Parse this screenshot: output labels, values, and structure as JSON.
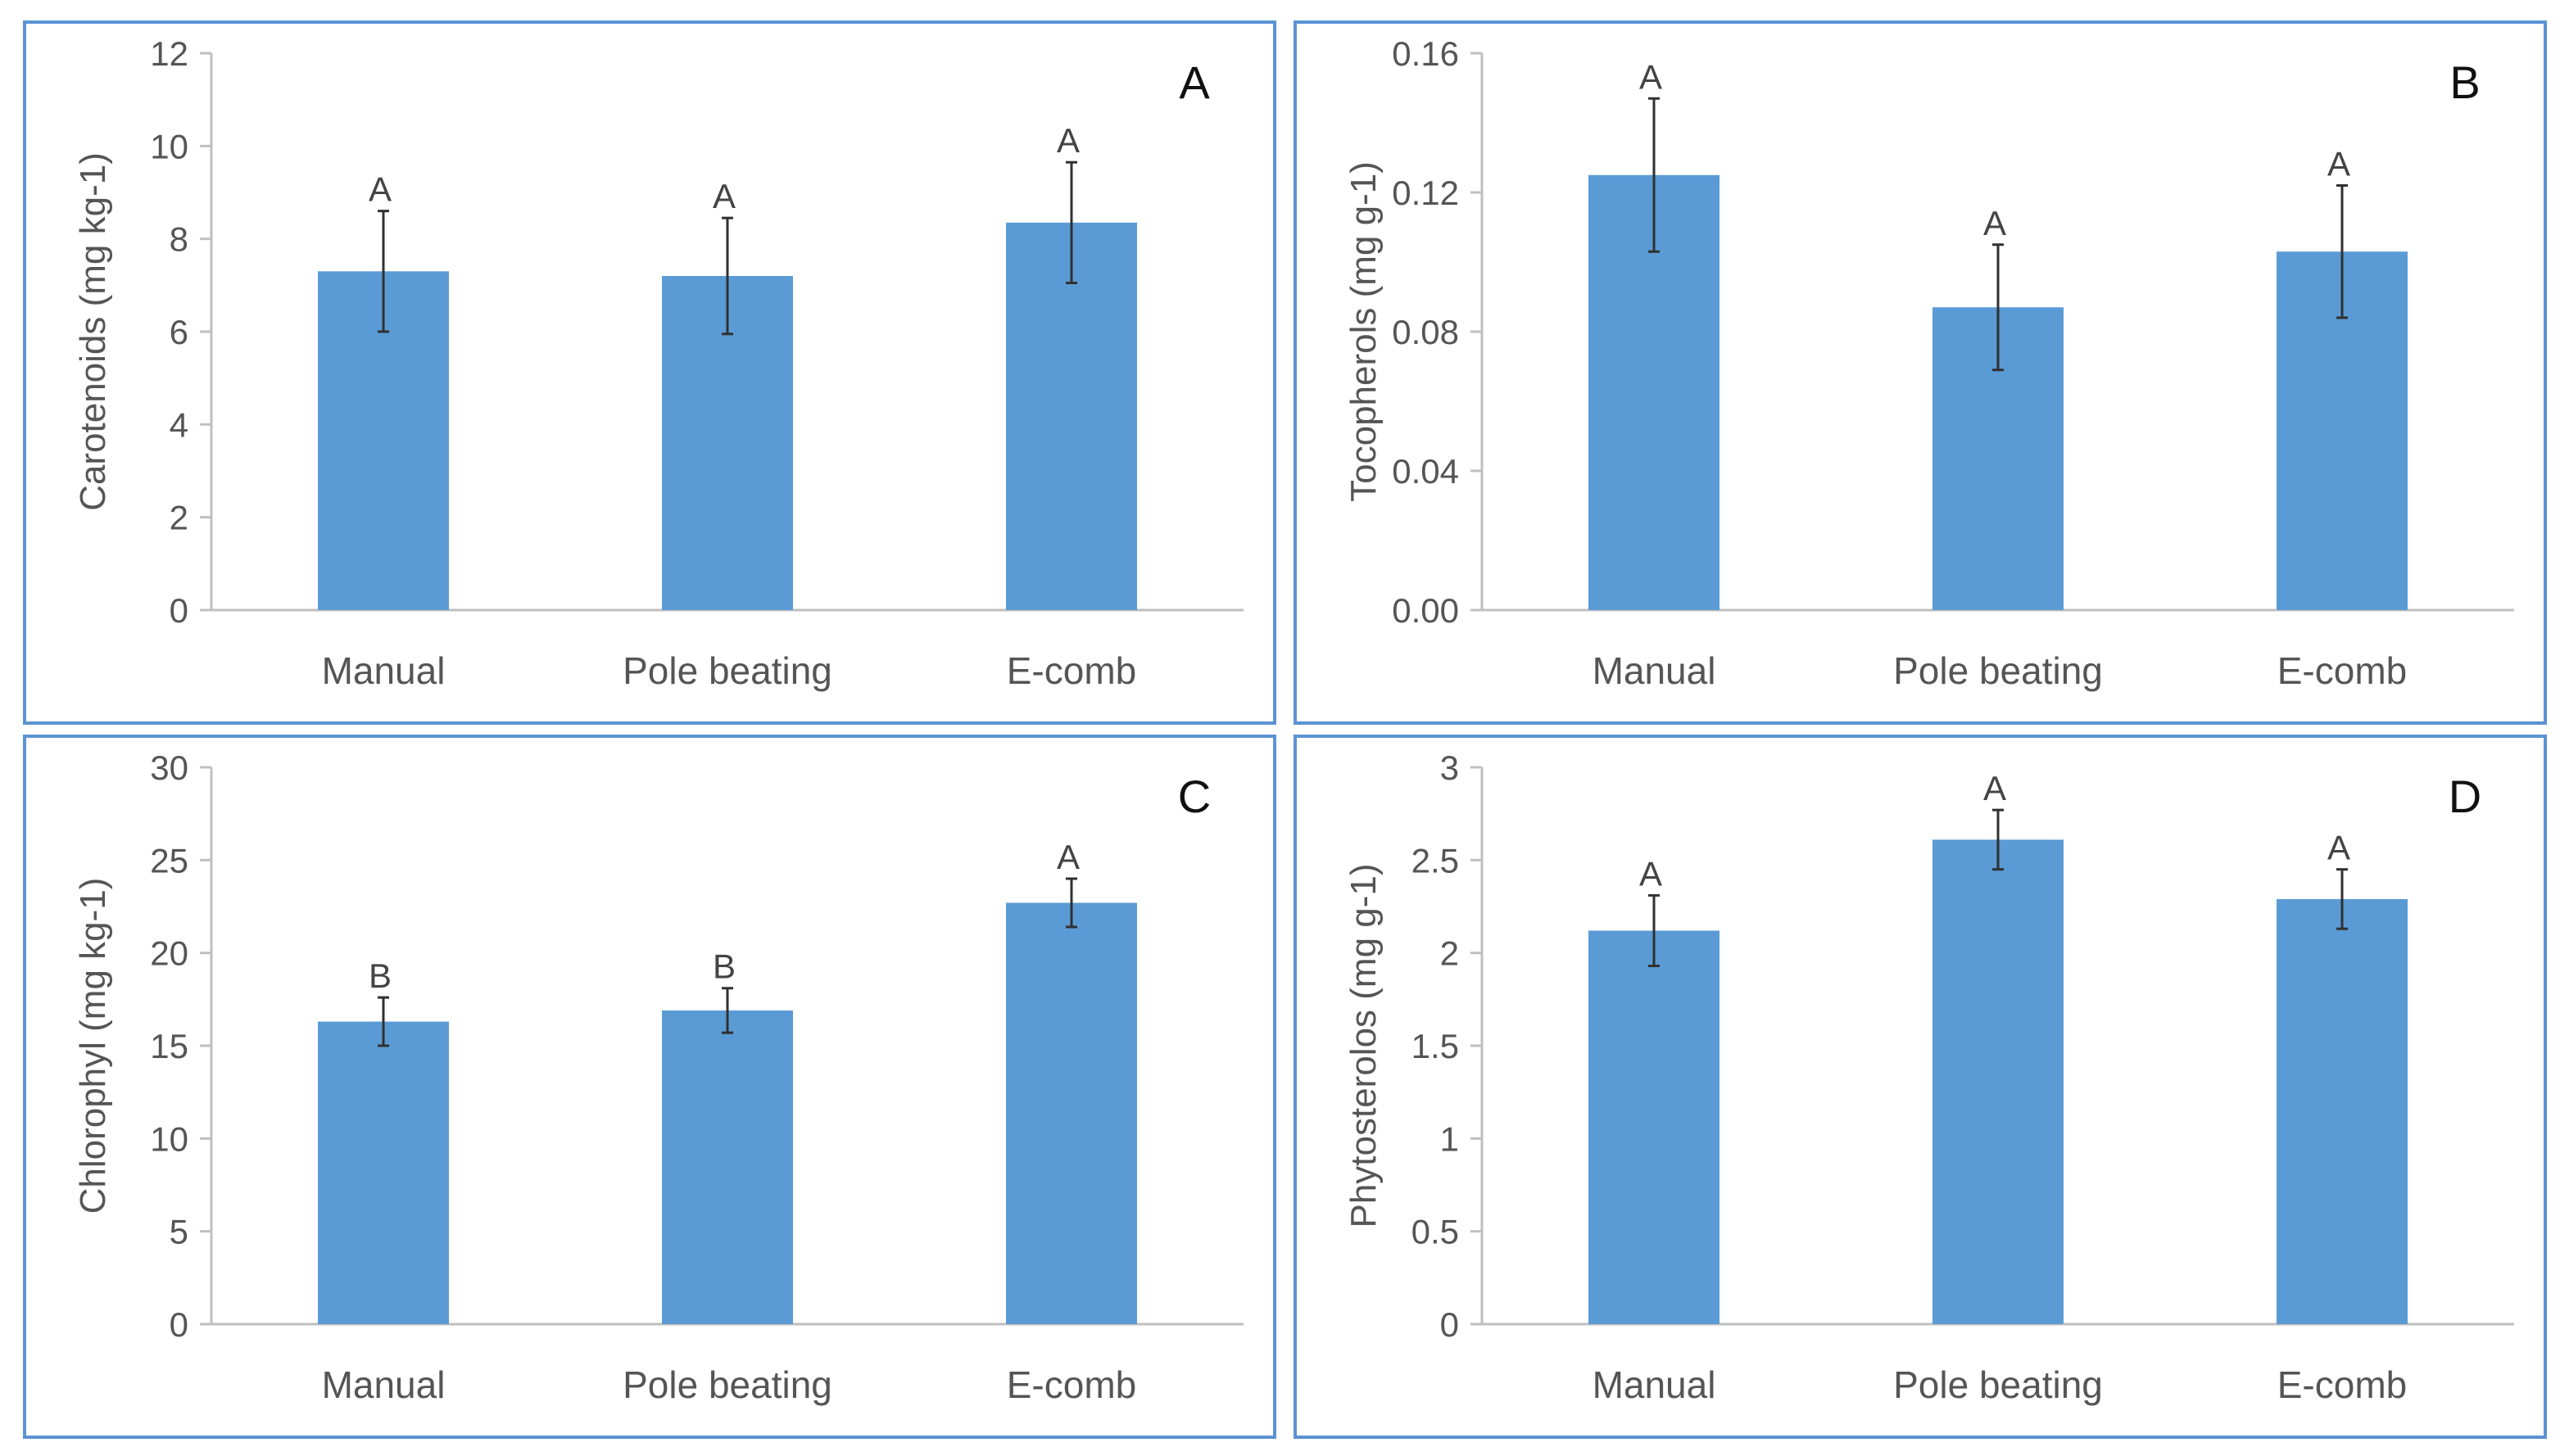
{
  "chart_data": [
    {
      "type": "bar",
      "panel_label": "A",
      "ylabel": "Carotenoids (mg kg-1)",
      "categories": [
        "Manual",
        "Pole beating",
        "E-comb"
      ],
      "values": [
        7.3,
        7.2,
        8.35
      ],
      "errors": [
        1.3,
        1.25,
        1.3
      ],
      "significance": [
        "A",
        "A",
        "A"
      ],
      "ylim": [
        0,
        12
      ],
      "yticks": [
        "0",
        "2",
        "4",
        "6",
        "8",
        "10",
        "12"
      ],
      "color": "#5b9bd5"
    },
    {
      "type": "bar",
      "panel_label": "B",
      "ylabel": "Tocopherols (mg g-1)",
      "categories": [
        "Manual",
        "Pole beating",
        "E-comb"
      ],
      "values": [
        0.125,
        0.087,
        0.103
      ],
      "errors": [
        0.022,
        0.018,
        0.019
      ],
      "significance": [
        "A",
        "A",
        "A"
      ],
      "ylim": [
        0,
        0.16
      ],
      "yticks": [
        "0.00",
        "0.04",
        "0.08",
        "0.12",
        "0.16"
      ],
      "color": "#5b9bd5"
    },
    {
      "type": "bar",
      "panel_label": "C",
      "ylabel": "Chlorophyl (mg kg-1)",
      "categories": [
        "Manual",
        "Pole beating",
        "E-comb"
      ],
      "values": [
        16.3,
        16.9,
        22.7
      ],
      "errors": [
        1.3,
        1.2,
        1.3
      ],
      "significance": [
        "B",
        "B",
        "A"
      ],
      "ylim": [
        0,
        30
      ],
      "yticks": [
        "0",
        "5",
        "10",
        "15",
        "20",
        "25",
        "30"
      ],
      "color": "#5b9bd5"
    },
    {
      "type": "bar",
      "panel_label": "D",
      "ylabel": "Phytosterolos (mg g-1)",
      "categories": [
        "Manual",
        "Pole beating",
        "E-comb"
      ],
      "values": [
        2.12,
        2.61,
        2.29
      ],
      "errors": [
        0.19,
        0.16,
        0.16
      ],
      "significance": [
        "A",
        "A",
        "A"
      ],
      "ylim": [
        0,
        3
      ],
      "yticks": [
        "0",
        "0.5",
        "1",
        "1.5",
        "2",
        "2.5",
        "3"
      ],
      "color": "#5b9bd5"
    }
  ]
}
